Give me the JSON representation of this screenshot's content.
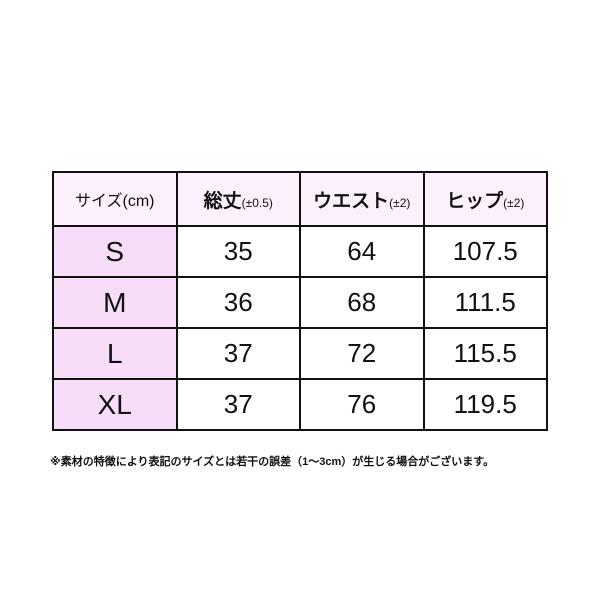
{
  "table": {
    "header": [
      {
        "label": "サイズ(cm)"
      },
      {
        "label": "総丈",
        "note": "(±0.5)"
      },
      {
        "label": "ウエスト",
        "note": "(±2)"
      },
      {
        "label": "ヒップ",
        "note": "(±2)"
      }
    ],
    "rows": [
      [
        "S",
        "35",
        "64",
        "107.5"
      ],
      [
        "M",
        "36",
        "68",
        "111.5"
      ],
      [
        "L",
        "37",
        "72",
        "115.5"
      ],
      [
        "XL",
        "37",
        "76",
        "119.5"
      ]
    ]
  },
  "footnote": "※素材の特徴により表記のサイズとは若干の誤差（1～3cm）が生じる場合がございます。"
}
